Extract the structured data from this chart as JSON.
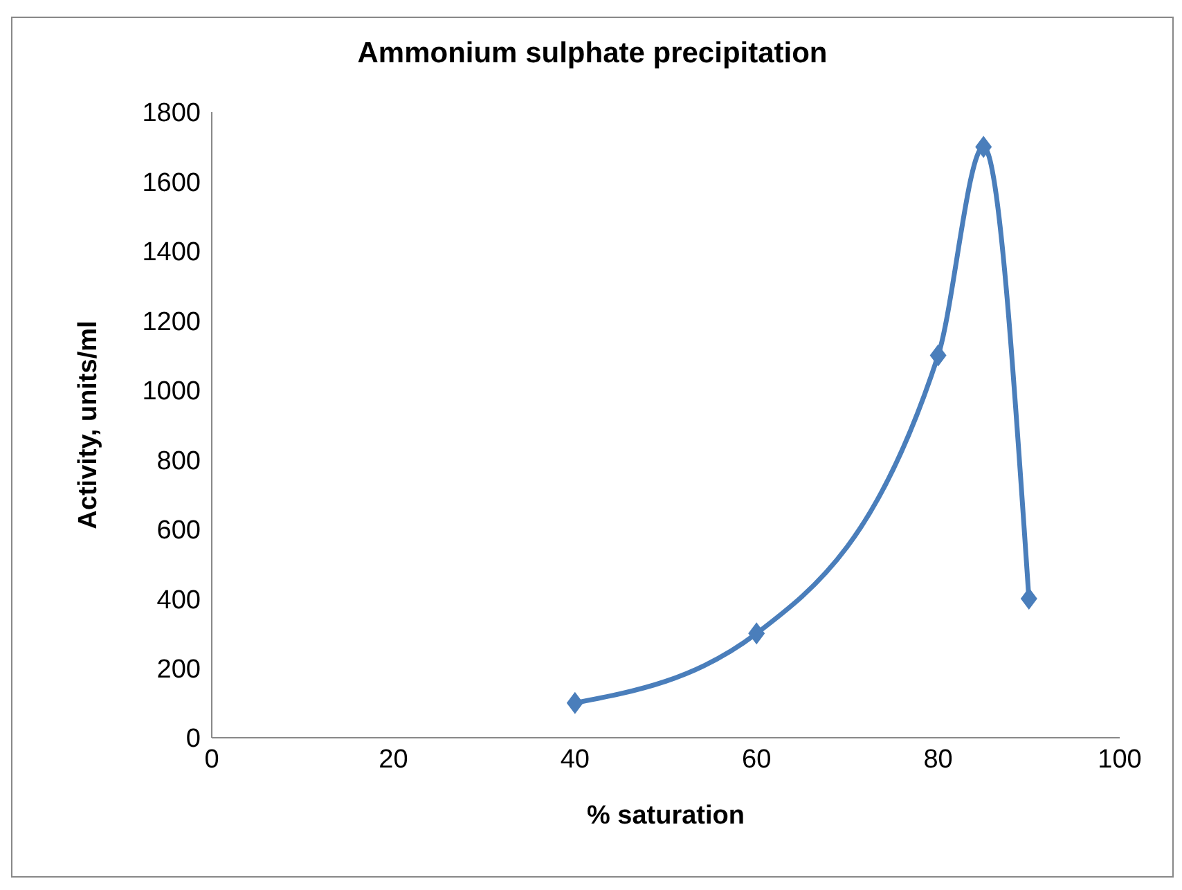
{
  "chart_data": {
    "type": "line",
    "title": "Ammonium sulphate precipitation",
    "xlabel": "% saturation",
    "ylabel": "Activity, units/ml",
    "x": [
      40,
      60,
      80,
      85,
      90
    ],
    "series": [
      {
        "color": "#4a7ebb",
        "values": [
          100,
          300,
          1100,
          1700,
          400
        ]
      }
    ],
    "xlim": [
      0,
      100
    ],
    "xticks": [
      0,
      20,
      40,
      60,
      80,
      100
    ],
    "ylim": [
      0,
      1800
    ],
    "yticks": [
      0,
      200,
      400,
      600,
      800,
      1000,
      1200,
      1400,
      1600,
      1800
    ],
    "marker": "diamond",
    "line_style": "solid",
    "grid": false,
    "legend": false
  }
}
